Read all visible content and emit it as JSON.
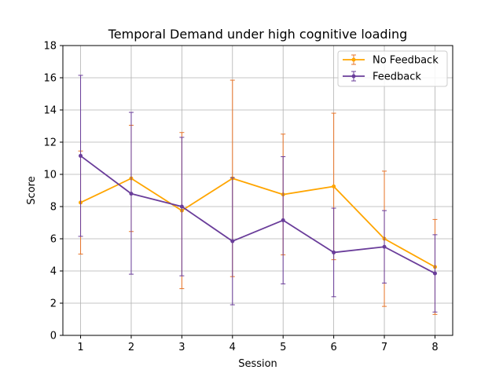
{
  "chart_data": {
    "type": "line",
    "title": "Temporal Demand under high cognitive loading",
    "xlabel": "Session",
    "ylabel": "Score",
    "x": [
      1,
      2,
      3,
      4,
      5,
      6,
      7,
      8
    ],
    "xlim": [
      0.65,
      8.35
    ],
    "ylim": [
      0,
      18
    ],
    "yticks": [
      0,
      2,
      4,
      6,
      8,
      10,
      12,
      14,
      16,
      18
    ],
    "grid": true,
    "legend_position": "top-right",
    "series": [
      {
        "name": "No Feedback",
        "color": "#FFA500",
        "error_color": "#E8752A",
        "values": [
          8.25,
          9.75,
          7.75,
          9.75,
          8.75,
          9.25,
          6.0,
          4.25
        ],
        "lower": [
          5.05,
          6.45,
          2.9,
          3.65,
          5.0,
          4.7,
          1.8,
          1.3
        ],
        "upper": [
          11.45,
          13.05,
          12.6,
          15.85,
          12.5,
          13.8,
          10.2,
          7.2
        ]
      },
      {
        "name": "Feedback",
        "color": "#6A3D9A",
        "error_color": "#6A3D9A",
        "values": [
          11.15,
          8.8,
          8.0,
          5.85,
          7.15,
          5.15,
          5.5,
          3.85
        ],
        "lower": [
          6.15,
          3.8,
          3.7,
          1.9,
          3.2,
          2.4,
          3.25,
          1.45
        ],
        "upper": [
          16.15,
          13.85,
          12.3,
          9.8,
          11.1,
          7.9,
          7.75,
          6.25
        ]
      }
    ]
  }
}
